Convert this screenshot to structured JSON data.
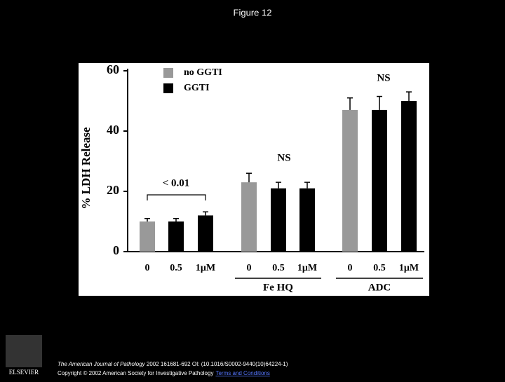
{
  "page": {
    "title": "Figure 12",
    "footer": {
      "journal": "The American Journal of Pathology",
      "citation": " 2002 161681-692 OI: (10.1016/S0002-9440(10)64224-1)",
      "copyright": "Copyright © 2002 American Society for Investigative Pathology",
      "link": "Terms and Conditions",
      "logo": "ELSEVIER"
    }
  },
  "chart_data": {
    "type": "bar",
    "y_label": "% LDH Release",
    "categories": [
      "0",
      "0.5",
      "1μM",
      "0",
      "0.5",
      "1μM",
      "0",
      "0.5",
      "1μM"
    ],
    "group_labels": [
      "Fe HQ",
      "ADC"
    ],
    "series": [
      {
        "name": "no GGTI",
        "color": "#999999",
        "values": [
          10,
          null,
          null,
          23,
          null,
          null,
          47,
          null,
          null
        ],
        "errors": [
          1,
          null,
          null,
          3,
          null,
          null,
          4,
          null,
          null
        ]
      },
      {
        "name": "GGTI",
        "color": "#000000",
        "values": [
          null,
          10,
          12,
          null,
          21,
          21,
          null,
          47,
          50
        ],
        "errors": [
          null,
          1,
          1.2,
          null,
          2,
          2,
          null,
          4.5,
          3
        ]
      }
    ],
    "annotations": [
      "< 0.01",
      "NS",
      "NS"
    ],
    "ylim": [
      0,
      60
    ],
    "yticks": [
      0,
      20,
      40,
      60
    ],
    "grid": false
  }
}
